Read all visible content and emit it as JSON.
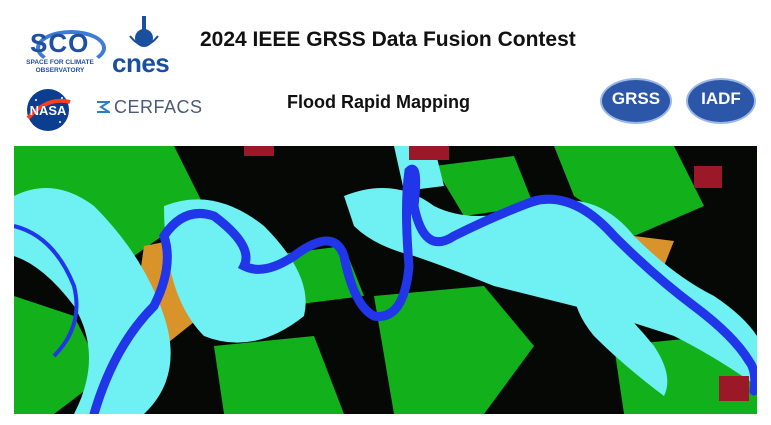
{
  "header": {
    "title": "2024 IEEE GRSS Data Fusion Contest",
    "subtitle": "Flood Rapid Mapping"
  },
  "logos": {
    "sco": {
      "name": "SCO",
      "tagline_line1": "SPACE FOR CLIMATE",
      "tagline_line2": "OBSERVATORY"
    },
    "cnes": {
      "name": "cnes"
    },
    "nasa": {
      "name": "NASA"
    },
    "cerfacs": {
      "name": "CERFACS"
    },
    "grss": {
      "name": "GRSS"
    },
    "iadf": {
      "name": "IADF"
    }
  },
  "map": {
    "legend_colors": {
      "background": "#050805",
      "vegetation": "#12b01a",
      "flooded_area": "#6ff0f2",
      "river": "#2036e8",
      "bare_soil": "#d8932a",
      "urban": "#9b1828"
    }
  }
}
